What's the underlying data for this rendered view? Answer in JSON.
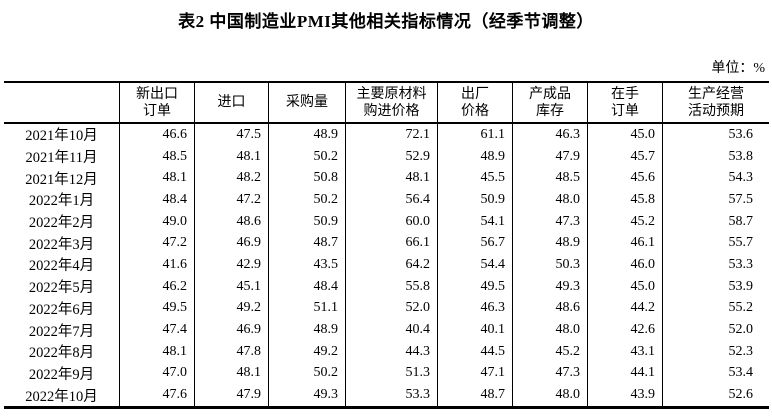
{
  "page": {
    "title": "表2 中国制造业PMI其他相关指标情况（经季节调整）",
    "unit_label": "单位：%"
  },
  "table": {
    "columns": [
      {
        "line1": "",
        "line2": ""
      },
      {
        "line1": "新出口",
        "line2": "订单"
      },
      {
        "line1": "进口",
        "line2": ""
      },
      {
        "line1": "采购量",
        "line2": ""
      },
      {
        "line1": "主要原材料",
        "line2": "购进价格"
      },
      {
        "line1": "出厂",
        "line2": "价格"
      },
      {
        "line1": "产成品",
        "line2": "库存"
      },
      {
        "line1": "在手",
        "line2": "订单"
      },
      {
        "line1": "生产经营",
        "line2": "活动预期"
      }
    ],
    "rows": [
      {
        "date": "2021年10月",
        "values": [
          "46.6",
          "47.5",
          "48.9",
          "72.1",
          "61.1",
          "46.3",
          "45.0",
          "53.6"
        ]
      },
      {
        "date": "2021年11月",
        "values": [
          "48.5",
          "48.1",
          "50.2",
          "52.9",
          "48.9",
          "47.9",
          "45.7",
          "53.8"
        ]
      },
      {
        "date": "2021年12月",
        "values": [
          "48.1",
          "48.2",
          "50.8",
          "48.1",
          "45.5",
          "48.5",
          "45.6",
          "54.3"
        ]
      },
      {
        "date": "2022年1月",
        "values": [
          "48.4",
          "47.2",
          "50.2",
          "56.4",
          "50.9",
          "48.0",
          "45.8",
          "57.5"
        ]
      },
      {
        "date": "2022年2月",
        "values": [
          "49.0",
          "48.6",
          "50.9",
          "60.0",
          "54.1",
          "47.3",
          "45.2",
          "58.7"
        ]
      },
      {
        "date": "2022年3月",
        "values": [
          "47.2",
          "46.9",
          "48.7",
          "66.1",
          "56.7",
          "48.9",
          "46.1",
          "55.7"
        ]
      },
      {
        "date": "2022年4月",
        "values": [
          "41.6",
          "42.9",
          "43.5",
          "64.2",
          "54.4",
          "50.3",
          "46.0",
          "53.3"
        ]
      },
      {
        "date": "2022年5月",
        "values": [
          "46.2",
          "45.1",
          "48.4",
          "55.8",
          "49.5",
          "49.3",
          "45.0",
          "53.9"
        ]
      },
      {
        "date": "2022年6月",
        "values": [
          "49.5",
          "49.2",
          "51.1",
          "52.0",
          "46.3",
          "48.6",
          "44.2",
          "55.2"
        ]
      },
      {
        "date": "2022年7月",
        "values": [
          "47.4",
          "46.9",
          "48.9",
          "40.4",
          "40.1",
          "48.0",
          "42.6",
          "52.0"
        ]
      },
      {
        "date": "2022年8月",
        "values": [
          "48.1",
          "47.8",
          "49.2",
          "44.3",
          "44.5",
          "45.2",
          "43.1",
          "52.3"
        ]
      },
      {
        "date": "2022年9月",
        "values": [
          "47.0",
          "48.1",
          "50.2",
          "51.3",
          "47.1",
          "47.3",
          "44.1",
          "53.4"
        ]
      },
      {
        "date": "2022年10月",
        "values": [
          "47.6",
          "47.9",
          "49.3",
          "53.3",
          "48.7",
          "48.0",
          "43.9",
          "52.6"
        ]
      }
    ]
  }
}
